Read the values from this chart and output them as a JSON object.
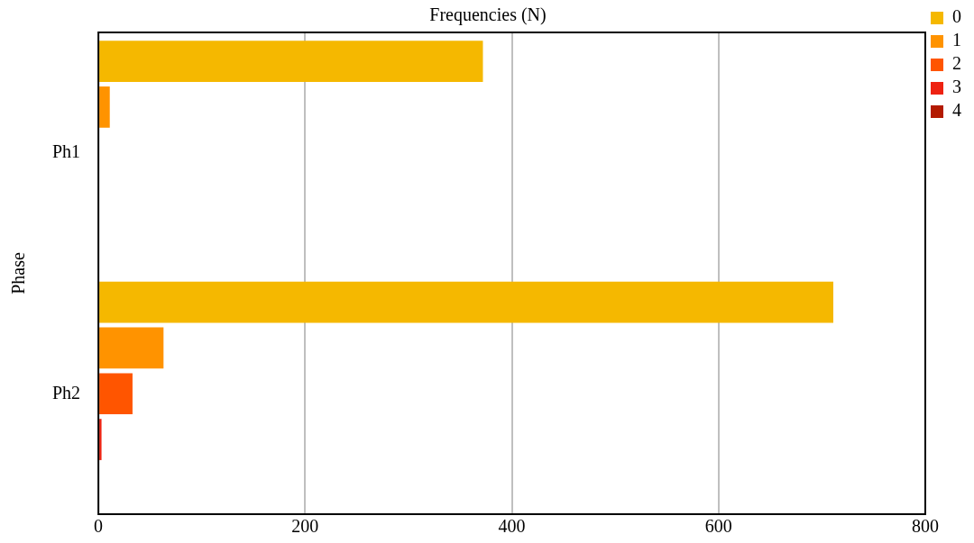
{
  "chart_data": {
    "type": "bar",
    "orientation": "horizontal",
    "xlabel": "Frequencies (N)",
    "ylabel": "Phase",
    "categories": [
      "Ph1",
      "Ph2"
    ],
    "series": [
      {
        "name": "0",
        "color": "#f5b800",
        "values": [
          372,
          711
        ]
      },
      {
        "name": "1",
        "color": "#ff9300",
        "values": [
          11,
          63
        ]
      },
      {
        "name": "2",
        "color": "#ff5500",
        "values": [
          0,
          33
        ]
      },
      {
        "name": "3",
        "color": "#ee2211",
        "values": [
          0,
          3
        ]
      },
      {
        "name": "4",
        "color": "#b31a00",
        "values": [
          0,
          0
        ]
      }
    ],
    "xlim": [
      0,
      800
    ],
    "xticks": [
      0,
      200,
      400,
      600,
      800
    ],
    "grid": "x",
    "legend": "top right"
  }
}
